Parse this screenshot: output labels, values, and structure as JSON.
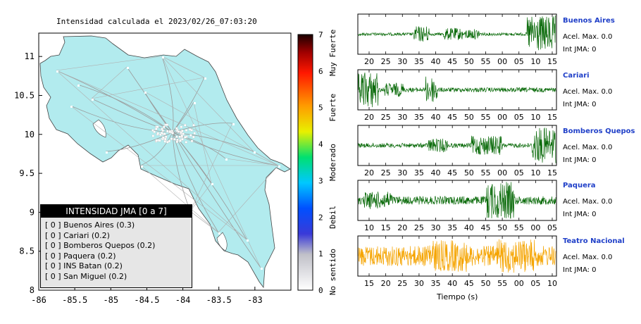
{
  "map_title": "Intensidad calculada el 2023/02/26_07:03:20",
  "legend": {
    "title": "INTENSIDAD JMA [0 a 7]",
    "items": [
      {
        "level": "[ 0 ]",
        "name": "Buenos Aires (0.3)"
      },
      {
        "level": "[ 0 ]",
        "name": "Cariari (0.2)"
      },
      {
        "level": "[ 0 ]",
        "name": "Bomberos Quepos (0.2)"
      },
      {
        "level": "[ 0 ]",
        "name": "Paquera (0.2)"
      },
      {
        "level": "[ 0 ]",
        "name": "INS Batan (0.2)"
      },
      {
        "level": "[ 0 ]",
        "name": "San Miguel (0.2)"
      }
    ]
  },
  "colors": {
    "land": "#b2ebee",
    "trace_default": "#0b6b0b",
    "trace_highlight": "#f5a400",
    "station_name": "#1f3fc8"
  },
  "chart_data": [
    {
      "type": "map",
      "xlim": [
        -86,
        -82.5
      ],
      "ylim": [
        8,
        11.3
      ],
      "xticks": [
        "-86",
        "-85.5",
        "-85",
        "-84.5",
        "-84",
        "-83.5",
        "-83"
      ],
      "yticks": [
        "8",
        "8.5",
        "9",
        "9.5",
        "10",
        "10.5",
        "11"
      ],
      "grid": false
    },
    {
      "type": "colorbar",
      "range": [
        0,
        7
      ],
      "ticks": [
        "0",
        "1",
        "2",
        "3",
        "4",
        "5",
        "6",
        "7"
      ],
      "category_labels": [
        "No sentido",
        "Debil",
        "Moderado",
        "Fuerte",
        "Muy Fuerte"
      ]
    },
    {
      "type": "line",
      "xlabel": "Tiempo (s)",
      "traces": [
        {
          "station": "Buenos Aires",
          "acel": "Acel. Max. 0.0",
          "int": "Int JMA: 0",
          "xticks": [
            "20",
            "25",
            "30",
            "35",
            "40",
            "45",
            "50",
            "55",
            "00",
            "05",
            "10",
            "15"
          ],
          "highlight": false
        },
        {
          "station": "Cariari",
          "acel": "Acel. Max. 0.0",
          "int": "Int JMA: 0",
          "xticks": [
            "20",
            "25",
            "30",
            "35",
            "40",
            "45",
            "50",
            "55",
            "00",
            "05",
            "10",
            "15"
          ],
          "highlight": false
        },
        {
          "station": "Bomberos Quepos",
          "acel": "Acel. Max. 0.0",
          "int": "Int JMA: 0",
          "xticks": [
            "20",
            "25",
            "30",
            "35",
            "40",
            "45",
            "50",
            "55",
            "00",
            "05",
            "10",
            "15"
          ],
          "highlight": false
        },
        {
          "station": "Paquera",
          "acel": "Acel. Max. 0.0",
          "int": "Int JMA: 0",
          "xticks": [
            "10",
            "15",
            "20",
            "25",
            "30",
            "35",
            "40",
            "45",
            "50",
            "55",
            "00",
            "05"
          ],
          "highlight": false
        },
        {
          "station": "Teatro Nacional",
          "acel": "Acel. Max. 0.0",
          "int": "Int JMA: 0",
          "xticks": [
            "15",
            "20",
            "25",
            "30",
            "35",
            "40",
            "45",
            "50",
            "55",
            "00",
            "05",
            "10"
          ],
          "highlight": true
        }
      ]
    }
  ]
}
